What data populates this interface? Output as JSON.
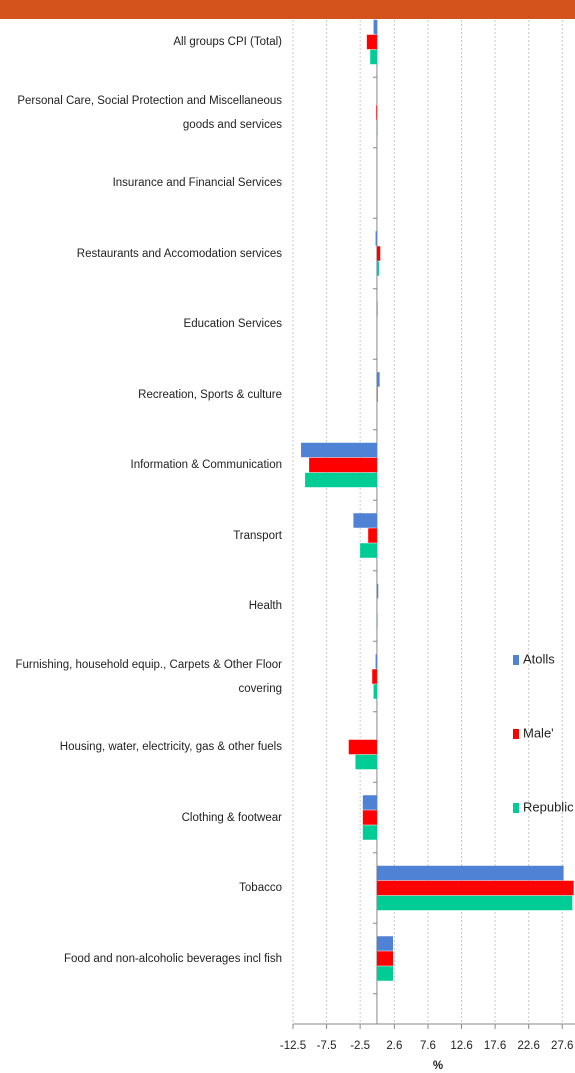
{
  "chart_data": {
    "type": "bar",
    "orientation": "horizontal",
    "categories": [
      "All groups CPI (Total)",
      "Personal Care, Social Protection and Miscellaneous goods and services",
      "Insurance and Financial Services",
      "Restaurants and Accomodation services",
      "Education Services",
      "Recreation, Sports & culture",
      "Information & Communication",
      "Transport",
      "Health",
      "Furnishing, household equip., Carpets & Other Floor covering",
      "Housing, water, electricity, gas & other fuels",
      "Clothing & footwear",
      "Tobacco",
      "Food and non-alcoholic beverages incl fish"
    ],
    "series": [
      {
        "name": "Atolls",
        "color": "#4f81d4",
        "values": [
          -0.5,
          0,
          0,
          -0.2,
          0.1,
          0.4,
          -11.3,
          -3.5,
          0.2,
          -0.2,
          0,
          -2.1,
          27.8,
          2.4
        ]
      },
      {
        "name": "Male'",
        "color": "#ff0000",
        "values": [
          -1.5,
          -0.1,
          0,
          0.5,
          0,
          0.1,
          -10.1,
          -1.3,
          0,
          -0.7,
          -4.2,
          -2.1,
          29.3,
          2.4
        ]
      },
      {
        "name": "Republic",
        "color": "#00cc96",
        "values": [
          -1.0,
          0.1,
          0,
          0.3,
          0,
          0,
          -10.7,
          -2.5,
          0.1,
          -0.5,
          -3.2,
          -2.1,
          29.1,
          2.4
        ]
      }
    ],
    "xlabel": "%",
    "xlim": [
      -12.5,
      29.5
    ],
    "xticks": [
      -12.5,
      -7.5,
      -2.5,
      2.6,
      7.6,
      12.6,
      17.6,
      22.6,
      27.6
    ],
    "grid": true,
    "legend": "right"
  }
}
